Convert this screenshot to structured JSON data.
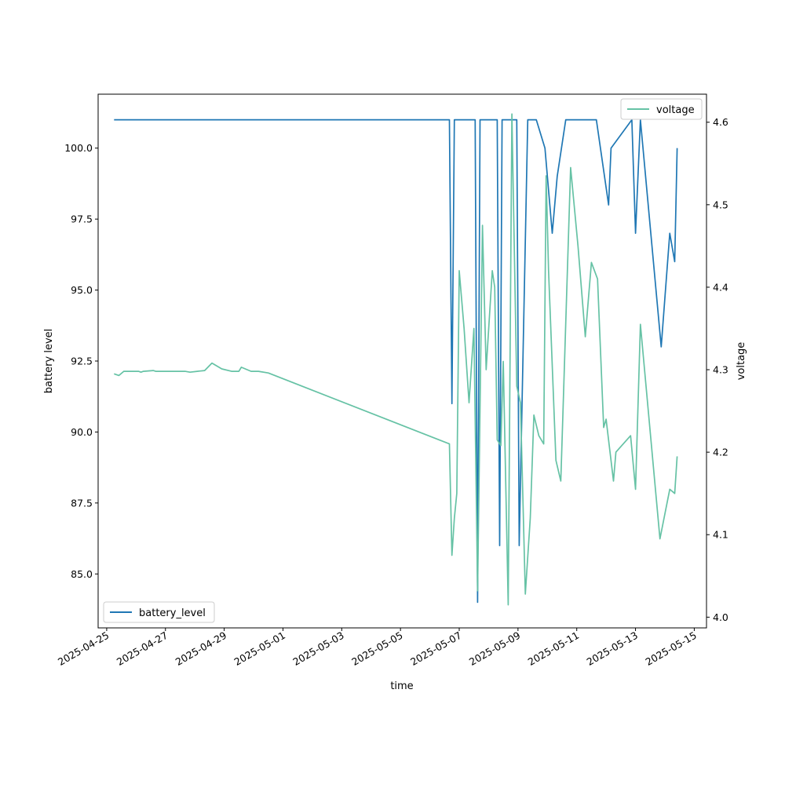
{
  "chart_data": {
    "type": "line",
    "xlabel": "time",
    "y_left_label": "battery level",
    "y_right_label": "voltage",
    "x_ticks": [
      "2025-04-25",
      "2025-04-27",
      "2025-04-29",
      "2025-05-01",
      "2025-05-03",
      "2025-05-05",
      "2025-05-07",
      "2025-05-09",
      "2025-05-11",
      "2025-05-13",
      "2025-05-15"
    ],
    "y_left_ticks": [
      "85.0",
      "87.5",
      "90.0",
      "92.5",
      "95.0",
      "97.5",
      "100.0"
    ],
    "y_right_ticks": [
      "4.0",
      "4.1",
      "4.2",
      "4.3",
      "4.4",
      "4.5",
      "4.6"
    ],
    "y_left_lim": [
      83.1,
      101.9
    ],
    "y_right_lim": [
      3.987,
      4.634
    ],
    "x_lim": [
      "2025-04-24 17:00",
      "2025-05-15 10:00"
    ],
    "legend_left": "bottom-left",
    "legend_right": "top-right",
    "series": [
      {
        "name": "battery_level",
        "axis": "left",
        "color": "#1f77b4",
        "points": [
          [
            "2025-04-25 06:00",
            101
          ],
          [
            "2025-05-06 16:00",
            101
          ],
          [
            "2025-05-06 18:00",
            91
          ],
          [
            "2025-05-06 20:00",
            101
          ],
          [
            "2025-05-07 13:00",
            101
          ],
          [
            "2025-05-07 15:00",
            84
          ],
          [
            "2025-05-07 17:00",
            101
          ],
          [
            "2025-05-08 07:00",
            101
          ],
          [
            "2025-05-08 09:00",
            86
          ],
          [
            "2025-05-08 11:00",
            101
          ],
          [
            "2025-05-08 23:00",
            101
          ],
          [
            "2025-05-09 01:00",
            86
          ],
          [
            "2025-05-09 08:00",
            101
          ],
          [
            "2025-05-09 15:00",
            101
          ],
          [
            "2025-05-09 22:00",
            100
          ],
          [
            "2025-05-10 04:00",
            97
          ],
          [
            "2025-05-10 08:00",
            99
          ],
          [
            "2025-05-10 15:00",
            101
          ],
          [
            "2025-05-11 16:00",
            101
          ],
          [
            "2025-05-12 02:00",
            98
          ],
          [
            "2025-05-12 04:00",
            100
          ],
          [
            "2025-05-12 21:00",
            101
          ],
          [
            "2025-05-13 00:00",
            97
          ],
          [
            "2025-05-13 04:00",
            101
          ],
          [
            "2025-05-13 21:00",
            93
          ],
          [
            "2025-05-14 04:00",
            97
          ],
          [
            "2025-05-14 08:00",
            96
          ],
          [
            "2025-05-14 10:00",
            100
          ]
        ]
      },
      {
        "name": "voltage",
        "axis": "right",
        "color": "#66c2a5",
        "points": [
          [
            "2025-04-25 06:00",
            4.295
          ],
          [
            "2025-04-25 10:00",
            4.293
          ],
          [
            "2025-04-25 14:00",
            4.298
          ],
          [
            "2025-04-26 02:00",
            4.298
          ],
          [
            "2025-04-26 04:00",
            4.297
          ],
          [
            "2025-04-26 06:00",
            4.298
          ],
          [
            "2025-04-26 14:00",
            4.299
          ],
          [
            "2025-04-26 16:00",
            4.298
          ],
          [
            "2025-04-27 16:00",
            4.298
          ],
          [
            "2025-04-27 20:00",
            4.297
          ],
          [
            "2025-04-28 02:00",
            4.298
          ],
          [
            "2025-04-28 08:00",
            4.299
          ],
          [
            "2025-04-28 14:00",
            4.308
          ],
          [
            "2025-04-28 22:00",
            4.301
          ],
          [
            "2025-04-29 06:00",
            4.298
          ],
          [
            "2025-04-29 12:00",
            4.298
          ],
          [
            "2025-04-29 14:00",
            4.303
          ],
          [
            "2025-04-29 22:00",
            4.298
          ],
          [
            "2025-04-30 04:00",
            4.298
          ],
          [
            "2025-04-30 12:00",
            4.296
          ],
          [
            "2025-05-06 16:00",
            4.21
          ],
          [
            "2025-05-06 18:00",
            4.075
          ],
          [
            "2025-05-06 20:00",
            4.12
          ],
          [
            "2025-05-06 22:00",
            4.15
          ],
          [
            "2025-05-07 00:00",
            4.42
          ],
          [
            "2025-05-07 04:00",
            4.35
          ],
          [
            "2025-05-07 08:00",
            4.26
          ],
          [
            "2025-05-07 12:00",
            4.35
          ],
          [
            "2025-05-07 15:00",
            4.032
          ],
          [
            "2025-05-07 19:00",
            4.475
          ],
          [
            "2025-05-07 22:00",
            4.3
          ],
          [
            "2025-05-08 03:00",
            4.42
          ],
          [
            "2025-05-08 05:00",
            4.4
          ],
          [
            "2025-05-08 07:00",
            4.215
          ],
          [
            "2025-05-08 10:00",
            4.208
          ],
          [
            "2025-05-08 12:00",
            4.31
          ],
          [
            "2025-05-08 16:00",
            4.015
          ],
          [
            "2025-05-08 19:00",
            4.61
          ],
          [
            "2025-05-08 23:00",
            4.28
          ],
          [
            "2025-05-09 02:00",
            4.26
          ],
          [
            "2025-05-09 06:00",
            4.028
          ],
          [
            "2025-05-09 10:00",
            4.12
          ],
          [
            "2025-05-09 13:00",
            4.245
          ],
          [
            "2025-05-09 17:00",
            4.22
          ],
          [
            "2025-05-09 21:00",
            4.21
          ],
          [
            "2025-05-09 23:00",
            4.535
          ],
          [
            "2025-05-10 01:00",
            4.42
          ],
          [
            "2025-05-10 07:00",
            4.19
          ],
          [
            "2025-05-10 11:00",
            4.165
          ],
          [
            "2025-05-10 19:00",
            4.545
          ],
          [
            "2025-05-11 01:00",
            4.45
          ],
          [
            "2025-05-11 07:00",
            4.34
          ],
          [
            "2025-05-11 12:00",
            4.43
          ],
          [
            "2025-05-11 17:00",
            4.41
          ],
          [
            "2025-05-11 22:00",
            4.23
          ],
          [
            "2025-05-12 00:00",
            4.24
          ],
          [
            "2025-05-12 06:00",
            4.165
          ],
          [
            "2025-05-12 08:00",
            4.2
          ],
          [
            "2025-05-12 20:00",
            4.22
          ],
          [
            "2025-05-13 00:00",
            4.155
          ],
          [
            "2025-05-13 04:00",
            4.355
          ],
          [
            "2025-05-13 20:00",
            4.095
          ],
          [
            "2025-05-14 04:00",
            4.155
          ],
          [
            "2025-05-14 08:00",
            4.15
          ],
          [
            "2025-05-14 10:00",
            4.195
          ]
        ]
      }
    ]
  }
}
